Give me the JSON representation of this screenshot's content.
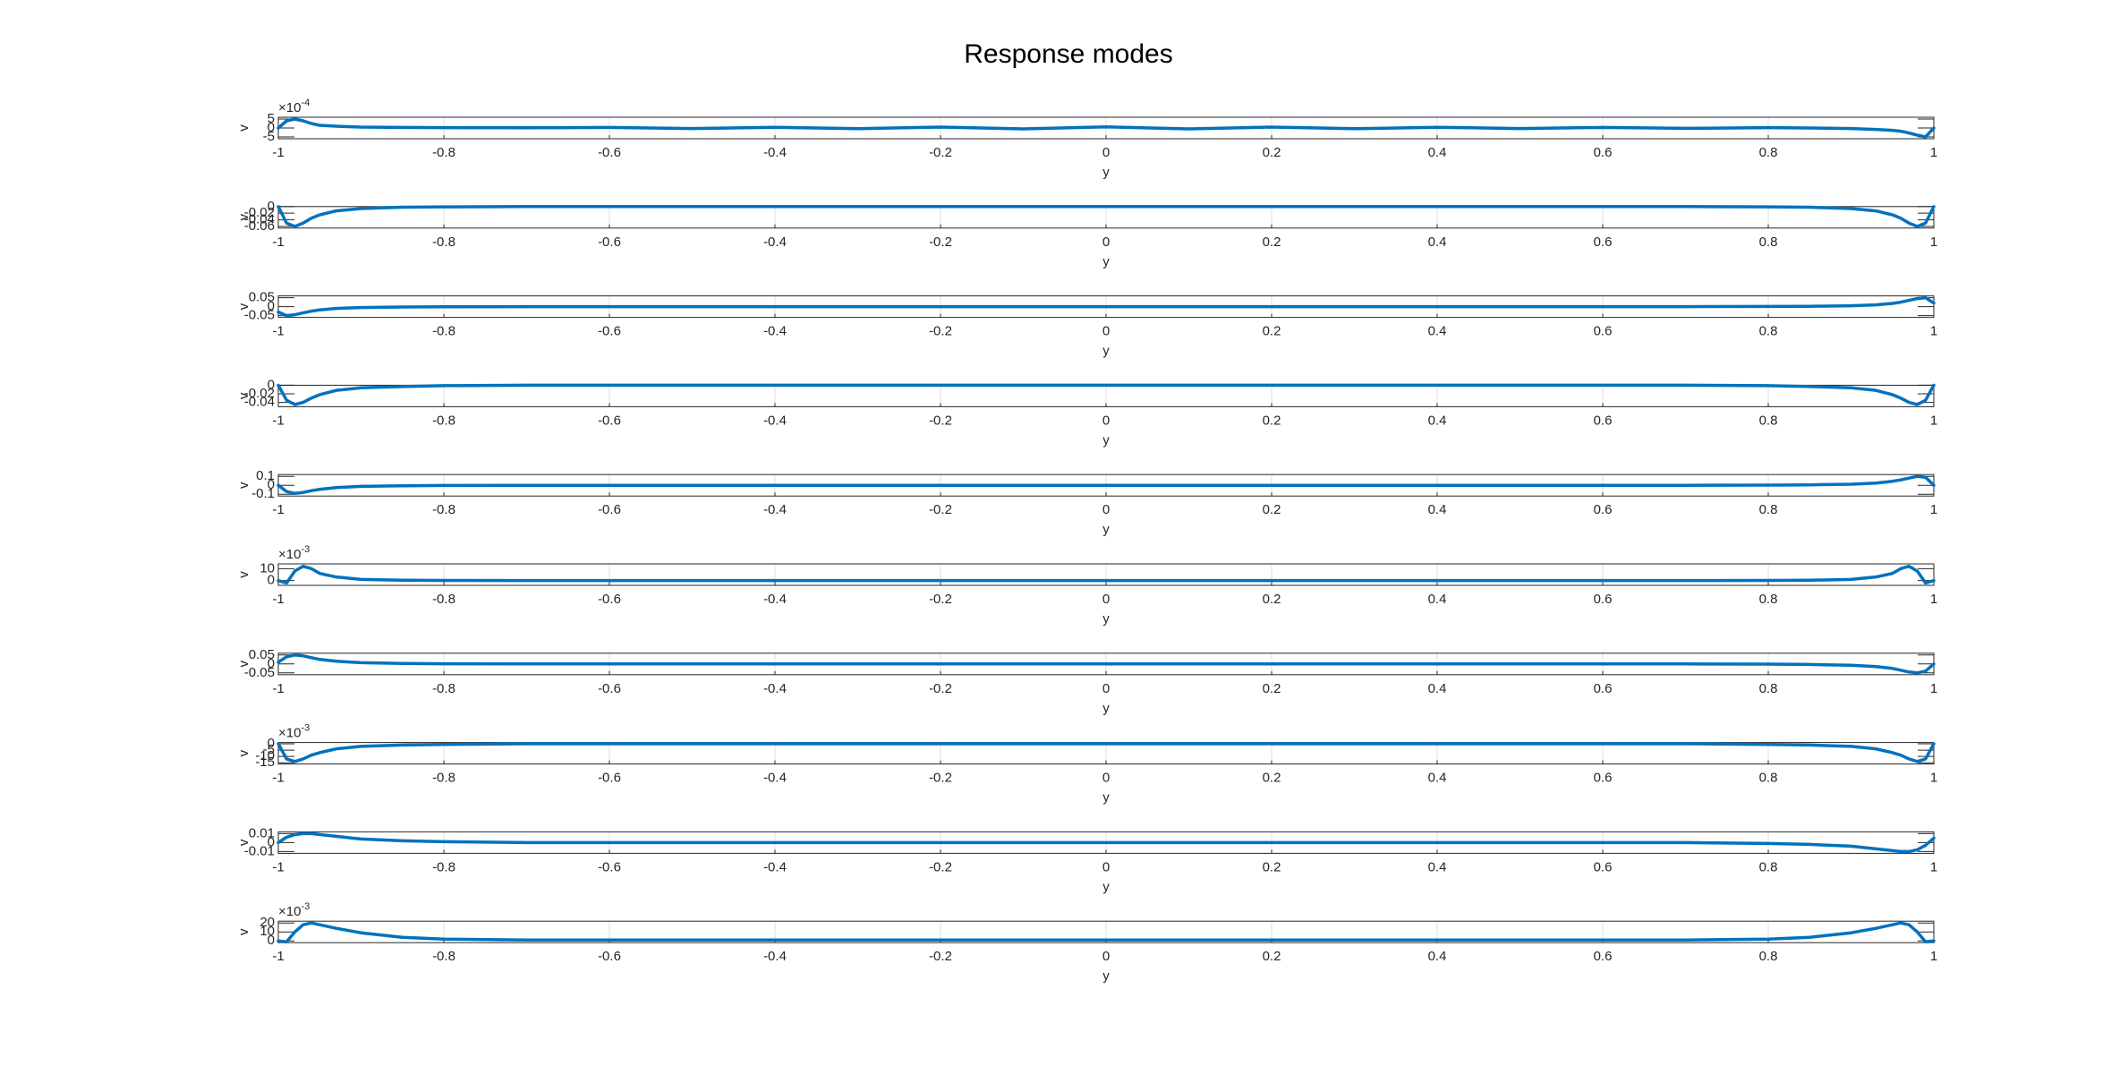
{
  "title": "Response modes",
  "chart_data": [
    {
      "type": "line",
      "xlabel": "y",
      "ylabel": "v",
      "y_exponent": {
        "base": "×10",
        "exponent": "-4"
      },
      "color": "#0072bd",
      "grid": true,
      "xlim": [
        -1,
        1
      ],
      "xticks": [
        -1,
        -0.8,
        -0.6,
        -0.4,
        -0.2,
        0,
        0.2,
        0.4,
        0.6,
        0.8,
        1
      ],
      "ylim": [
        -6,
        6
      ],
      "yticks": [
        -5,
        0,
        5
      ],
      "x": [
        -1,
        -0.99,
        -0.98,
        -0.97,
        -0.96,
        -0.95,
        -0.93,
        -0.9,
        -0.85,
        -0.8,
        -0.7,
        -0.6,
        -0.5,
        -0.4,
        -0.3,
        -0.2,
        -0.1,
        0,
        0.1,
        0.2,
        0.3,
        0.4,
        0.5,
        0.6,
        0.7,
        0.8,
        0.85,
        0.9,
        0.93,
        0.95,
        0.96,
        0.97,
        0.98,
        0.99,
        1
      ],
      "values": [
        0,
        4,
        5,
        4,
        2.5,
        1.5,
        1,
        0.5,
        0.3,
        0.2,
        0.1,
        0.3,
        -0.3,
        0.4,
        -0.4,
        0.5,
        -0.5,
        0.6,
        -0.5,
        0.5,
        -0.4,
        0.4,
        -0.3,
        0.3,
        -0.2,
        0.2,
        0,
        -0.3,
        -0.8,
        -1.3,
        -1.8,
        -2.8,
        -4,
        -5,
        0
      ]
    },
    {
      "type": "line",
      "xlabel": "y",
      "ylabel": "v",
      "color": "#0072bd",
      "grid": true,
      "xlim": [
        -1,
        1
      ],
      "xticks": [
        -1,
        -0.8,
        -0.6,
        -0.4,
        -0.2,
        0,
        0.2,
        0.4,
        0.6,
        0.8,
        1
      ],
      "ylim": [
        -0.065,
        0
      ],
      "yticks": [
        -0.06,
        -0.04,
        -0.02,
        0
      ],
      "x": [
        -1,
        -0.99,
        -0.98,
        -0.97,
        -0.96,
        -0.95,
        -0.93,
        -0.9,
        -0.85,
        -0.8,
        -0.7,
        -0.6,
        -0.5,
        -0.4,
        -0.3,
        -0.2,
        -0.1,
        0,
        0.1,
        0.2,
        0.3,
        0.4,
        0.5,
        0.6,
        0.7,
        0.8,
        0.85,
        0.9,
        0.93,
        0.95,
        0.96,
        0.97,
        0.98,
        0.99,
        1
      ],
      "values": [
        0,
        -0.05,
        -0.06,
        -0.05,
        -0.035,
        -0.025,
        -0.013,
        -0.006,
        -0.002,
        -0.001,
        0,
        0,
        0,
        0,
        0,
        0,
        0,
        0,
        0,
        0,
        0,
        0,
        0,
        0,
        0,
        -0.001,
        -0.002,
        -0.006,
        -0.013,
        -0.025,
        -0.035,
        -0.05,
        -0.06,
        -0.05,
        0
      ]
    },
    {
      "type": "line",
      "xlabel": "y",
      "ylabel": "v",
      "color": "#0072bd",
      "grid": true,
      "xlim": [
        -1,
        1
      ],
      "xticks": [
        -1,
        -0.8,
        -0.6,
        -0.4,
        -0.2,
        0,
        0.2,
        0.4,
        0.6,
        0.8,
        1
      ],
      "ylim": [
        -0.06,
        0.06
      ],
      "yticks": [
        -0.05,
        0,
        0.05
      ],
      "x": [
        -1,
        -0.99,
        -0.98,
        -0.97,
        -0.96,
        -0.95,
        -0.93,
        -0.9,
        -0.85,
        -0.8,
        -0.7,
        -0.6,
        -0.5,
        -0.4,
        -0.3,
        -0.2,
        -0.1,
        0,
        0.1,
        0.2,
        0.3,
        0.4,
        0.5,
        0.6,
        0.7,
        0.8,
        0.85,
        0.9,
        0.93,
        0.95,
        0.96,
        0.97,
        0.98,
        0.99,
        1
      ],
      "values": [
        -0.03,
        -0.05,
        -0.045,
        -0.035,
        -0.025,
        -0.018,
        -0.01,
        -0.005,
        -0.002,
        -0.001,
        0,
        0,
        0,
        0,
        0,
        0,
        0,
        0,
        0,
        0,
        0,
        0,
        0,
        0,
        0,
        0.001,
        0.002,
        0.005,
        0.01,
        0.018,
        0.025,
        0.035,
        0.045,
        0.05,
        0.02
      ]
    },
    {
      "type": "line",
      "xlabel": "y",
      "ylabel": "v",
      "color": "#0072bd",
      "grid": true,
      "xlim": [
        -1,
        1
      ],
      "xticks": [
        -1,
        -0.8,
        -0.6,
        -0.4,
        -0.2,
        0,
        0.2,
        0.4,
        0.6,
        0.8,
        1
      ],
      "ylim": [
        -0.05,
        0
      ],
      "yticks": [
        -0.04,
        -0.02,
        0
      ],
      "x": [
        -1,
        -0.99,
        -0.98,
        -0.97,
        -0.96,
        -0.95,
        -0.93,
        -0.9,
        -0.85,
        -0.8,
        -0.7,
        -0.6,
        -0.5,
        -0.4,
        -0.3,
        -0.2,
        -0.1,
        0,
        0.1,
        0.2,
        0.3,
        0.4,
        0.5,
        0.6,
        0.7,
        0.8,
        0.85,
        0.9,
        0.93,
        0.95,
        0.96,
        0.97,
        0.98,
        0.99,
        1
      ],
      "values": [
        0,
        -0.035,
        -0.045,
        -0.04,
        -0.03,
        -0.022,
        -0.012,
        -0.006,
        -0.003,
        -0.001,
        0,
        0,
        0,
        0,
        0,
        0,
        0,
        0,
        0,
        0,
        0,
        0,
        0,
        0,
        0,
        -0.001,
        -0.003,
        -0.006,
        -0.012,
        -0.022,
        -0.03,
        -0.04,
        -0.045,
        -0.035,
        0
      ]
    },
    {
      "type": "line",
      "xlabel": "y",
      "ylabel": "v",
      "color": "#0072bd",
      "grid": true,
      "xlim": [
        -1,
        1
      ],
      "xticks": [
        -1,
        -0.8,
        -0.6,
        -0.4,
        -0.2,
        0,
        0.2,
        0.4,
        0.6,
        0.8,
        1
      ],
      "ylim": [
        -0.12,
        0.12
      ],
      "yticks": [
        -0.1,
        0,
        0.1
      ],
      "x": [
        -1,
        -0.99,
        -0.98,
        -0.97,
        -0.96,
        -0.95,
        -0.93,
        -0.9,
        -0.85,
        -0.8,
        -0.7,
        -0.6,
        -0.5,
        -0.4,
        -0.3,
        -0.2,
        -0.1,
        0,
        0.1,
        0.2,
        0.3,
        0.4,
        0.5,
        0.6,
        0.7,
        0.8,
        0.85,
        0.9,
        0.93,
        0.95,
        0.96,
        0.97,
        0.98,
        0.99,
        1
      ],
      "values": [
        0,
        -0.07,
        -0.09,
        -0.08,
        -0.06,
        -0.045,
        -0.025,
        -0.012,
        -0.005,
        -0.002,
        0,
        0,
        0,
        0,
        0,
        0,
        0,
        0,
        0,
        0,
        0,
        0,
        0,
        0,
        0,
        0.002,
        0.005,
        0.012,
        0.025,
        0.045,
        0.06,
        0.08,
        0.1,
        0.09,
        0
      ]
    },
    {
      "type": "line",
      "xlabel": "y",
      "ylabel": "v",
      "y_exponent": {
        "base": "×10",
        "exponent": "-3"
      },
      "color": "#0072bd",
      "grid": true,
      "xlim": [
        -1,
        1
      ],
      "xticks": [
        -1,
        -0.8,
        -0.6,
        -0.4,
        -0.2,
        0,
        0.2,
        0.4,
        0.6,
        0.8,
        1
      ],
      "ylim": [
        -4,
        14
      ],
      "yticks": [
        0,
        10
      ],
      "x": [
        -1,
        -0.99,
        -0.98,
        -0.97,
        -0.96,
        -0.95,
        -0.93,
        -0.9,
        -0.85,
        -0.8,
        -0.7,
        -0.6,
        -0.5,
        -0.4,
        -0.3,
        -0.2,
        -0.1,
        0,
        0.1,
        0.2,
        0.3,
        0.4,
        0.5,
        0.6,
        0.7,
        0.8,
        0.85,
        0.9,
        0.93,
        0.95,
        0.96,
        0.97,
        0.98,
        0.99,
        1
      ],
      "values": [
        0,
        -2,
        8,
        12,
        10,
        6,
        3,
        1,
        0.3,
        0.1,
        0,
        0,
        0,
        0,
        0,
        0,
        0,
        0,
        0,
        0,
        0,
        0,
        0,
        0,
        0,
        0.1,
        0.3,
        1,
        3,
        6,
        10,
        12,
        8,
        -2,
        0
      ]
    },
    {
      "type": "line",
      "xlabel": "y",
      "ylabel": "v",
      "color": "#0072bd",
      "grid": true,
      "xlim": [
        -1,
        1
      ],
      "xticks": [
        -1,
        -0.8,
        -0.6,
        -0.4,
        -0.2,
        0,
        0.2,
        0.4,
        0.6,
        0.8,
        1
      ],
      "ylim": [
        -0.06,
        0.06
      ],
      "yticks": [
        -0.05,
        0,
        0.05
      ],
      "x": [
        -1,
        -0.99,
        -0.98,
        -0.97,
        -0.96,
        -0.95,
        -0.93,
        -0.9,
        -0.85,
        -0.8,
        -0.7,
        -0.6,
        -0.5,
        -0.4,
        -0.3,
        -0.2,
        -0.1,
        0,
        0.1,
        0.2,
        0.3,
        0.4,
        0.5,
        0.6,
        0.7,
        0.8,
        0.85,
        0.9,
        0.93,
        0.95,
        0.96,
        0.97,
        0.98,
        0.99,
        1
      ],
      "values": [
        0.01,
        0.04,
        0.05,
        0.045,
        0.035,
        0.025,
        0.015,
        0.007,
        0.003,
        0.001,
        0,
        0,
        0,
        0,
        0,
        0,
        0,
        0,
        0,
        0,
        0,
        0,
        0,
        0,
        0,
        -0.001,
        -0.003,
        -0.007,
        -0.015,
        -0.025,
        -0.035,
        -0.045,
        -0.05,
        -0.04,
        0
      ]
    },
    {
      "type": "line",
      "xlabel": "y",
      "ylabel": "v",
      "y_exponent": {
        "base": "×10",
        "exponent": "-3"
      },
      "color": "#0072bd",
      "grid": true,
      "xlim": [
        -1,
        1
      ],
      "xticks": [
        -1,
        -0.8,
        -0.6,
        -0.4,
        -0.2,
        0,
        0.2,
        0.4,
        0.6,
        0.8,
        1
      ],
      "ylim": [
        -16,
        1
      ],
      "yticks": [
        -15,
        -10,
        -5,
        0
      ],
      "x": [
        -1,
        -0.99,
        -0.98,
        -0.97,
        -0.96,
        -0.95,
        -0.93,
        -0.9,
        -0.85,
        -0.8,
        -0.7,
        -0.6,
        -0.5,
        -0.4,
        -0.3,
        -0.2,
        -0.1,
        0,
        0.1,
        0.2,
        0.3,
        0.4,
        0.5,
        0.6,
        0.7,
        0.8,
        0.85,
        0.9,
        0.93,
        0.95,
        0.96,
        0.97,
        0.98,
        0.99,
        1
      ],
      "values": [
        0,
        -12,
        -14,
        -12,
        -9,
        -7,
        -4,
        -2,
        -1,
        -0.5,
        0,
        0,
        0,
        0,
        0,
        0,
        0,
        0,
        0,
        0,
        0,
        0,
        0,
        0,
        0,
        -0.5,
        -1,
        -2,
        -4,
        -7,
        -9,
        -12,
        -14,
        -12,
        0
      ]
    },
    {
      "type": "line",
      "xlabel": "y",
      "ylabel": "v",
      "color": "#0072bd",
      "grid": true,
      "xlim": [
        -1,
        1
      ],
      "xticks": [
        -1,
        -0.8,
        -0.6,
        -0.4,
        -0.2,
        0,
        0.2,
        0.4,
        0.6,
        0.8,
        1
      ],
      "ylim": [
        -0.012,
        0.012
      ],
      "yticks": [
        -0.01,
        0,
        0.01
      ],
      "x": [
        -1,
        -0.99,
        -0.98,
        -0.97,
        -0.96,
        -0.95,
        -0.93,
        -0.9,
        -0.85,
        -0.8,
        -0.7,
        -0.6,
        -0.5,
        -0.4,
        -0.3,
        -0.2,
        -0.1,
        0,
        0.1,
        0.2,
        0.3,
        0.4,
        0.5,
        0.6,
        0.7,
        0.8,
        0.85,
        0.9,
        0.93,
        0.95,
        0.96,
        0.97,
        0.98,
        0.99,
        1
      ],
      "values": [
        0,
        0.006,
        0.009,
        0.01,
        0.01,
        0.009,
        0.007,
        0.004,
        0.002,
        0.001,
        0,
        0,
        0,
        0,
        0,
        0,
        0,
        0,
        0,
        0,
        0,
        0,
        0,
        0,
        0,
        -0.001,
        -0.002,
        -0.004,
        -0.007,
        -0.009,
        -0.01,
        -0.01,
        -0.008,
        -0.003,
        0.005
      ]
    },
    {
      "type": "line",
      "xlabel": "y",
      "ylabel": "v",
      "y_exponent": {
        "base": "×10",
        "exponent": "-3"
      },
      "color": "#0072bd",
      "grid": true,
      "xlim": [
        -1,
        1
      ],
      "xticks": [
        -1,
        -0.8,
        -0.6,
        -0.4,
        -0.2,
        0,
        0.2,
        0.4,
        0.6,
        0.8,
        1
      ],
      "ylim": [
        -2,
        22
      ],
      "yticks": [
        0,
        10,
        20
      ],
      "x": [
        -1,
        -0.99,
        -0.98,
        -0.97,
        -0.96,
        -0.95,
        -0.93,
        -0.9,
        -0.85,
        -0.8,
        -0.7,
        -0.6,
        -0.5,
        -0.4,
        -0.3,
        -0.2,
        -0.1,
        0,
        0.1,
        0.2,
        0.3,
        0.4,
        0.5,
        0.6,
        0.7,
        0.8,
        0.85,
        0.9,
        0.93,
        0.95,
        0.96,
        0.97,
        0.98,
        0.99,
        1
      ],
      "values": [
        0,
        -1,
        10,
        18,
        20,
        18,
        14,
        9,
        4,
        2,
        1,
        1,
        1,
        1,
        1,
        1,
        1,
        1,
        1,
        1,
        1,
        1,
        1,
        1,
        1,
        2,
        4,
        9,
        14,
        18,
        20,
        18,
        10,
        -1,
        0
      ]
    }
  ]
}
